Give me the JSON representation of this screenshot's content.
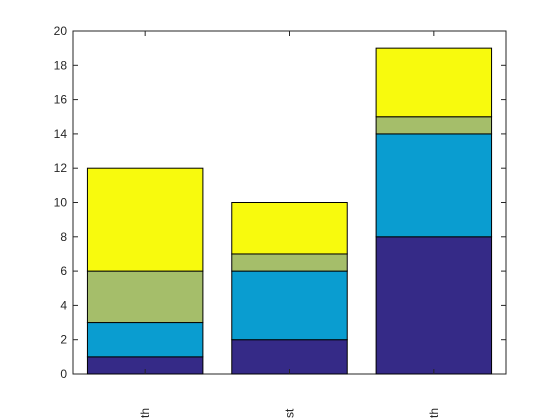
{
  "chart_data": {
    "type": "bar",
    "stacked": true,
    "categories": [
      "th",
      "st",
      "th"
    ],
    "series": [
      {
        "color": "#352A87",
        "values": [
          1,
          2,
          8
        ]
      },
      {
        "color": "#0A9DD0",
        "values": [
          2,
          4,
          6
        ]
      },
      {
        "color": "#A5BE6A",
        "values": [
          3,
          1,
          1
        ]
      },
      {
        "color": "#F8FA0D",
        "values": [
          6,
          3,
          4
        ]
      }
    ],
    "title": "",
    "xlabel": "",
    "ylabel": "",
    "ylim": [
      0,
      20
    ],
    "yticks": [
      0,
      2,
      4,
      6,
      8,
      10,
      12,
      14,
      16,
      18,
      20
    ],
    "ytick_labels": [
      "0",
      "2",
      "4",
      "6",
      "8",
      "10",
      "12",
      "14",
      "16",
      "18",
      "20"
    ],
    "x_tick_label_rotation": "vertical",
    "grid": false,
    "legend": "none"
  }
}
